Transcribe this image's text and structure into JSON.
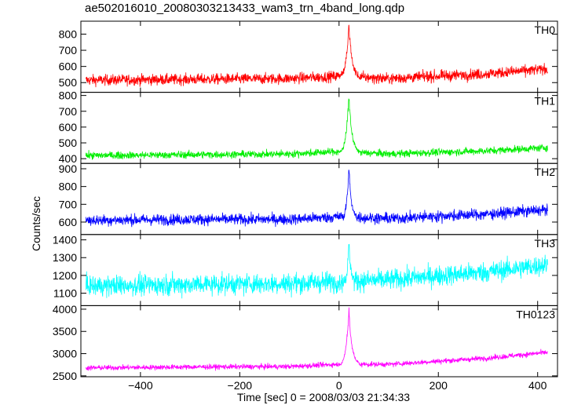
{
  "title": "ae502016010_20080303213433_wam3_trn_4band_long.qdp",
  "ylabel": "Counts/sec",
  "xlabel": "Time [sec] 0 = 2008/03/03 21:34:33",
  "chart_data": {
    "type": "line",
    "title": "ae502016010_20080303213433_wam3_trn_4band_long.qdp",
    "xlabel": "Time [sec] 0 = 2008/03/03 21:34:33",
    "ylabel": "Counts/sec",
    "xlim": [
      -520,
      440
    ],
    "xticks": [
      -400,
      -200,
      0,
      200,
      400
    ],
    "x_tick_labels": [
      "−400",
      "−200",
      "0",
      "200",
      "400"
    ],
    "panels": [
      {
        "name": "TH0",
        "color": "#ff0000",
        "ylim": [
          440,
          880
        ],
        "yticks": [
          500,
          600,
          700,
          800
        ],
        "baseline_points": [
          [
            -510,
            515
          ],
          [
            -300,
            520
          ],
          [
            -100,
            525
          ],
          [
            0,
            540
          ],
          [
            100,
            525
          ],
          [
            300,
            555
          ],
          [
            420,
            585
          ]
        ],
        "noise_amplitude": 32,
        "burst": {
          "t_peak": 20,
          "peak": 880,
          "rise_start": 0,
          "decay_end": 40
        }
      },
      {
        "name": "TH1",
        "color": "#00ee00",
        "ylim": [
          370,
          820
        ],
        "yticks": [
          400,
          500,
          600,
          700,
          800
        ],
        "baseline_points": [
          [
            -510,
            420
          ],
          [
            -300,
            425
          ],
          [
            -100,
            430
          ],
          [
            0,
            445
          ],
          [
            100,
            430
          ],
          [
            300,
            450
          ],
          [
            420,
            470
          ]
        ],
        "noise_amplitude": 22,
        "burst": {
          "t_peak": 20,
          "peak": 820,
          "rise_start": 0,
          "decay_end": 40
        }
      },
      {
        "name": "TH2",
        "color": "#0000ff",
        "ylim": [
          530,
          930
        ],
        "yticks": [
          600,
          700,
          800,
          900
        ],
        "baseline_points": [
          [
            -510,
            610
          ],
          [
            -300,
            615
          ],
          [
            -100,
            615
          ],
          [
            0,
            630
          ],
          [
            100,
            620
          ],
          [
            300,
            645
          ],
          [
            420,
            670
          ]
        ],
        "noise_amplitude": 30,
        "burst": {
          "t_peak": 20,
          "peak": 930,
          "rise_start": 5,
          "decay_end": 35
        }
      },
      {
        "name": "TH3",
        "color": "#00ffff",
        "ylim": [
          1030,
          1430
        ],
        "yticks": [
          1100,
          1200,
          1300,
          1400
        ],
        "baseline_points": [
          [
            -510,
            1140
          ],
          [
            -300,
            1150
          ],
          [
            -100,
            1155
          ],
          [
            0,
            1165
          ],
          [
            100,
            1175
          ],
          [
            300,
            1220
          ],
          [
            420,
            1260
          ]
        ],
        "noise_amplitude": 55,
        "burst": {
          "t_peak": 20,
          "peak": 1430,
          "rise_start": 10,
          "decay_end": 30
        }
      },
      {
        "name": "TH0123",
        "color": "#ff00ff",
        "ylim": [
          2480,
          4080
        ],
        "yticks": [
          2500,
          3000,
          3500,
          4000
        ],
        "baseline_points": [
          [
            -510,
            2680
          ],
          [
            -300,
            2700
          ],
          [
            -100,
            2710
          ],
          [
            0,
            2760
          ],
          [
            100,
            2760
          ],
          [
            300,
            2900
          ],
          [
            420,
            3030
          ]
        ],
        "noise_amplitude": 55,
        "burst": {
          "t_peak": 20,
          "peak": 4050,
          "rise_start": 0,
          "decay_end": 40
        }
      }
    ]
  }
}
